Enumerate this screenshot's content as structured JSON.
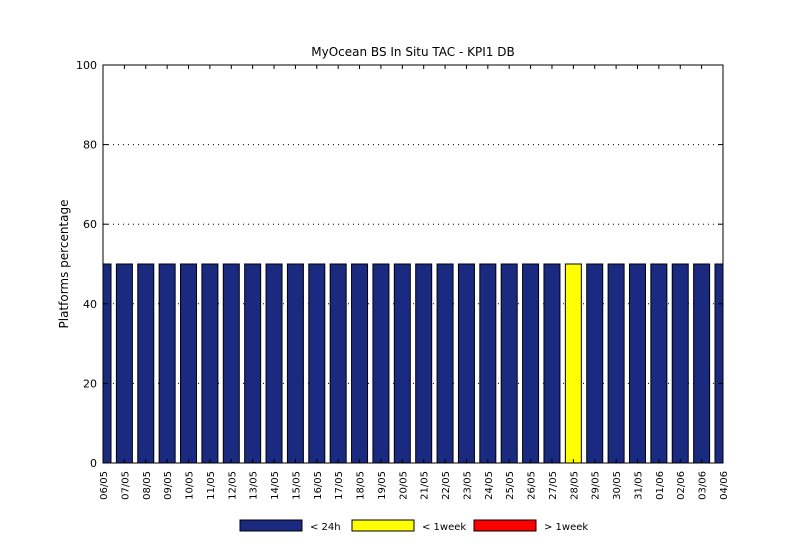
{
  "chart_data": {
    "type": "bar",
    "title": "MyOcean  BS In Situ TAC - KPI1  DB",
    "xlabel": "",
    "ylabel": "Platforms percentage",
    "ylim": [
      0,
      100
    ],
    "yticks": [
      "0",
      "20",
      "40",
      "60",
      "80",
      "100"
    ],
    "grid": "horizontal-dotted",
    "legend_position": "bottom-center",
    "stacked": true,
    "categories": [
      "06/05",
      "07/05",
      "08/05",
      "09/05",
      "10/05",
      "11/05",
      "12/05",
      "13/05",
      "14/05",
      "15/05",
      "16/05",
      "17/05",
      "18/05",
      "19/05",
      "20/05",
      "21/05",
      "22/05",
      "23/05",
      "24/05",
      "25/05",
      "26/05",
      "27/05",
      "28/05",
      "29/05",
      "30/05",
      "31/05",
      "01/06",
      "02/06",
      "03/06",
      "04/06"
    ],
    "series": [
      {
        "name": "< 24h",
        "color": "#1a2a80",
        "values": [
          50,
          50,
          50,
          50,
          50,
          50,
          50,
          50,
          50,
          50,
          50,
          50,
          50,
          50,
          50,
          50,
          50,
          50,
          50,
          50,
          50,
          50,
          0,
          50,
          50,
          50,
          50,
          50,
          50,
          50
        ]
      },
      {
        "name": "< 1week",
        "color": "#ffff00",
        "values": [
          0,
          0,
          0,
          0,
          0,
          0,
          0,
          0,
          0,
          0,
          0,
          0,
          0,
          0,
          0,
          0,
          0,
          0,
          0,
          0,
          0,
          0,
          50,
          0,
          0,
          0,
          0,
          0,
          0,
          0
        ]
      },
      {
        "name": "> 1week",
        "color": "#ff0000",
        "values": [
          0,
          0,
          0,
          0,
          0,
          0,
          0,
          0,
          0,
          0,
          0,
          0,
          0,
          0,
          0,
          0,
          0,
          0,
          0,
          0,
          0,
          0,
          0,
          0,
          0,
          0,
          0,
          0,
          0,
          0
        ]
      }
    ]
  }
}
